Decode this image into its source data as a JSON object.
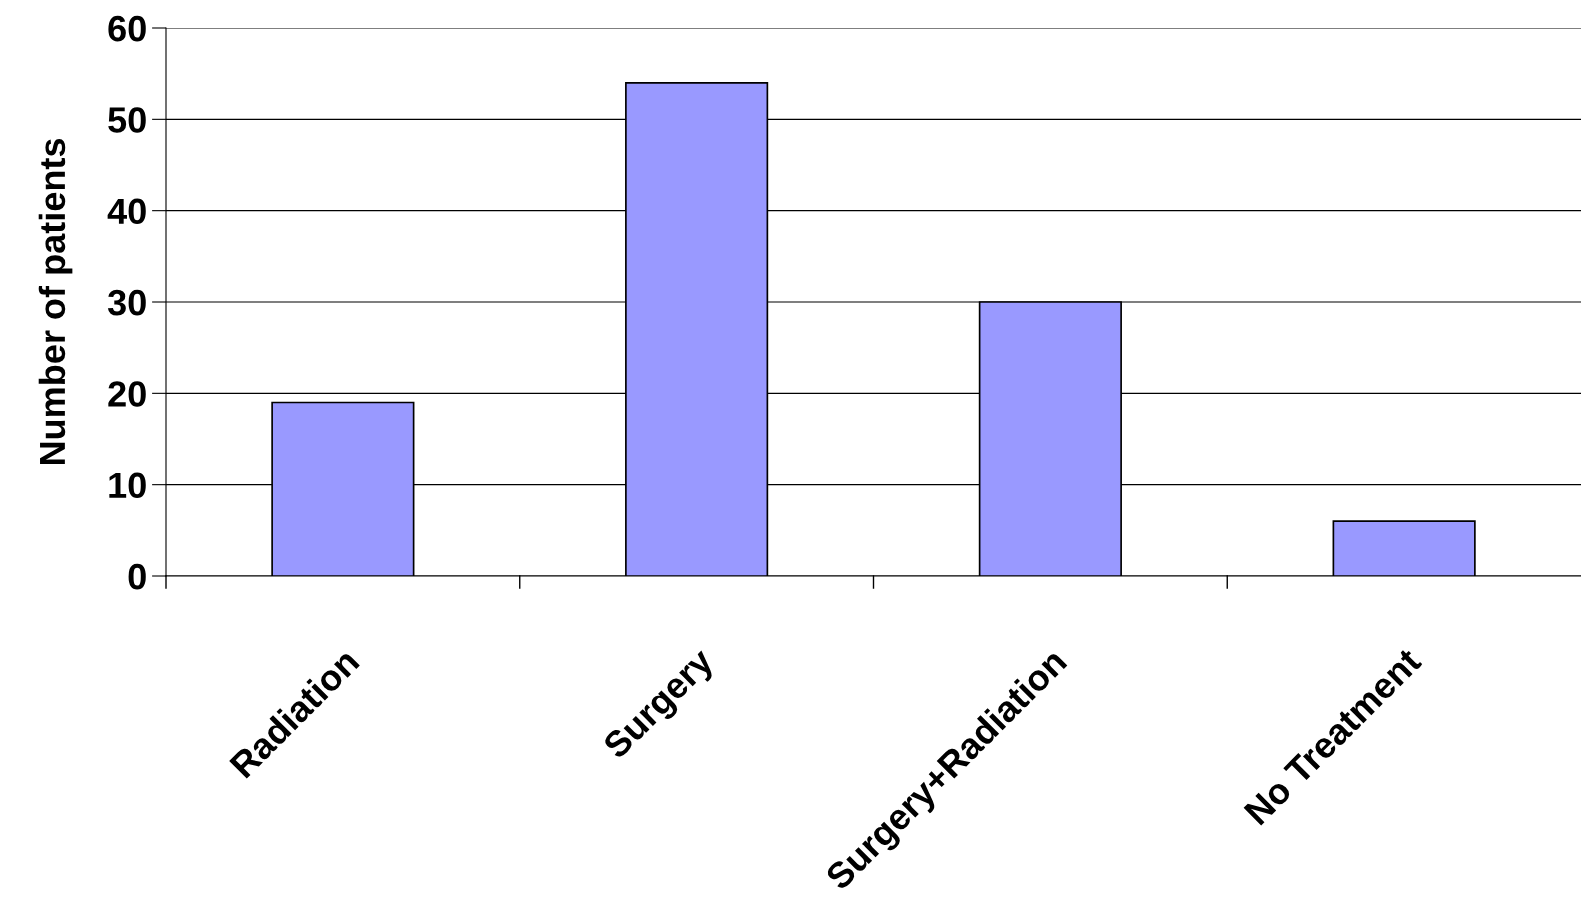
{
  "chart_data": {
    "type": "bar",
    "ylabel": "Number of patients",
    "categories": [
      "Radiation",
      "Surgery",
      "Surgery+Radiation",
      "No Treatment"
    ],
    "values": [
      19,
      54,
      30,
      6
    ],
    "color": "#9999ff",
    "ylim": [
      0,
      60
    ],
    "yticks": [
      0,
      10,
      20,
      30,
      40,
      50,
      60
    ],
    "grid": "y"
  }
}
